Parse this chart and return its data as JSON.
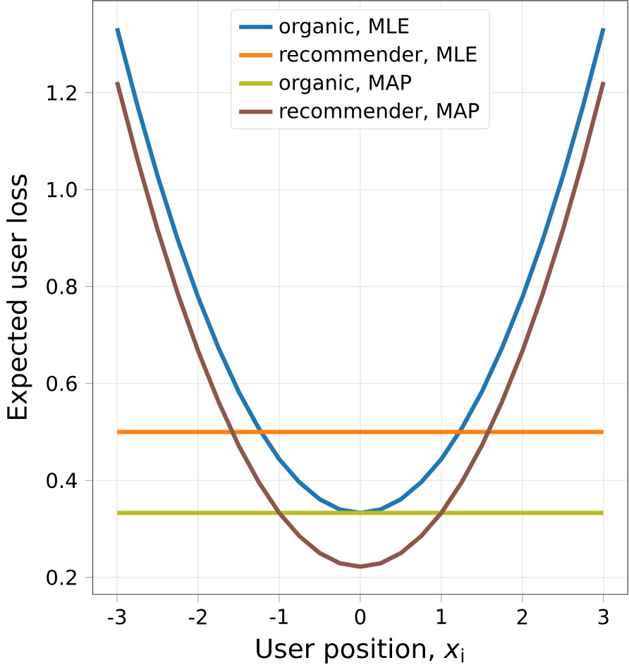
{
  "chart_data": {
    "type": "line",
    "xlabel": "User position, *x*$_{i}$",
    "ylabel": "Expected user loss",
    "xlim": [
      -3.3,
      3.3
    ],
    "ylim": [
      0.165,
      1.39
    ],
    "xticks": [
      -3,
      -2,
      -1,
      0,
      1,
      2,
      3
    ],
    "yticks": [
      0.2,
      0.4,
      0.6,
      0.8,
      {
        "value": 1.0,
        "label": "1.0"
      },
      1.2
    ],
    "grid": true,
    "legend": "top",
    "line_style": "solid",
    "marker": "none",
    "series": [
      {
        "name": "organic, MLE",
        "color": "#1f77b4",
        "x": [
          -3,
          -2.75,
          -2.5,
          -2.25,
          -2,
          -1.75,
          -1.5,
          -1.25,
          -1,
          -0.75,
          -0.5,
          -0.25,
          0,
          0.25,
          0.5,
          0.75,
          1,
          1.25,
          1.5,
          1.75,
          2,
          2.25,
          2.5,
          2.75,
          3
        ],
        "values": [
          1.333,
          1.174,
          1.028,
          0.896,
          0.778,
          0.674,
          0.583,
          0.507,
          0.444,
          0.396,
          0.361,
          0.34,
          0.333,
          0.34,
          0.361,
          0.396,
          0.444,
          0.507,
          0.583,
          0.674,
          0.778,
          0.896,
          1.028,
          1.174,
          1.333
        ]
      },
      {
        "name": "recommender, MLE",
        "color": "#ff7f0e",
        "x": [
          -3,
          3
        ],
        "values": [
          0.5,
          0.5
        ]
      },
      {
        "name": "organic, MAP",
        "color": "#bcbd22",
        "x": [
          -3,
          3
        ],
        "values": [
          0.333,
          0.333
        ]
      },
      {
        "name": "recommender, MAP",
        "color": "#8c564b",
        "x": [
          -3,
          -2.75,
          -2.5,
          -2.25,
          -2,
          -1.75,
          -1.5,
          -1.25,
          -1,
          -0.75,
          -0.5,
          -0.25,
          0,
          0.25,
          0.5,
          0.75,
          1,
          1.25,
          1.5,
          1.75,
          2,
          2.25,
          2.5,
          2.75,
          3
        ],
        "values": [
          1.222,
          1.063,
          0.917,
          0.785,
          0.667,
          0.563,
          0.472,
          0.396,
          0.333,
          0.285,
          0.25,
          0.229,
          0.222,
          0.229,
          0.25,
          0.285,
          0.333,
          0.396,
          0.472,
          0.563,
          0.667,
          0.785,
          0.917,
          1.063,
          1.222
        ]
      }
    ]
  }
}
